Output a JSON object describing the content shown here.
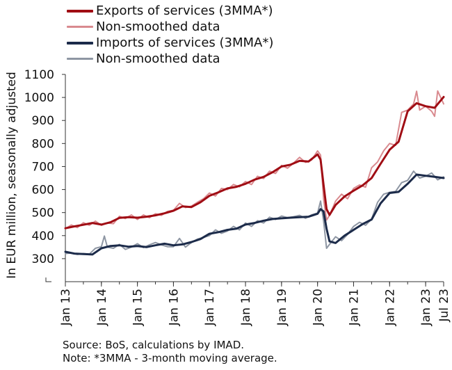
{
  "chart_data": {
    "type": "line",
    "ylabel": "In EUR million, seasonally adjusted",
    "ylim": [
      200,
      1100
    ],
    "yticks": [
      300,
      400,
      500,
      600,
      700,
      800,
      900,
      1000,
      1100
    ],
    "xtick_labels": [
      "Jan 13",
      "Jan 14",
      "Jan 15",
      "Jan 16",
      "Jan 17",
      "Jan 18",
      "Jan 19",
      "Jan 20",
      "Jan 21",
      "Jan 22",
      "Jan 23",
      "Jul 23"
    ],
    "legend": [
      "Exports of services (3MMA*)",
      "Non-smoothed data",
      "Imports of services (3MMA*)",
      "Non-smoothed data"
    ],
    "legend_position": "top-left",
    "grid": false,
    "series": [
      {
        "name": "Exports of services (3MMA*)",
        "color": "#a00d14",
        "style": "thick",
        "points": [
          [
            "Jan 13",
            432
          ],
          [
            "Apr 13",
            440
          ],
          [
            "Jul 13",
            447
          ],
          [
            "Oct 13",
            455
          ],
          [
            "Jan 14",
            448
          ],
          [
            "Apr 14",
            458
          ],
          [
            "Jul 14",
            477
          ],
          [
            "Oct 14",
            480
          ],
          [
            "Jan 15",
            478
          ],
          [
            "Apr 15",
            482
          ],
          [
            "Jul 15",
            488
          ],
          [
            "Oct 15",
            497
          ],
          [
            "Jan 16",
            508
          ],
          [
            "Apr 16",
            527
          ],
          [
            "Jul 16",
            524
          ],
          [
            "Oct 16",
            545
          ],
          [
            "Jan 17",
            573
          ],
          [
            "Apr 17",
            588
          ],
          [
            "Jul 17",
            605
          ],
          [
            "Oct 17",
            612
          ],
          [
            "Jan 18",
            625
          ],
          [
            "Apr 18",
            643
          ],
          [
            "Jul 18",
            655
          ],
          [
            "Oct 18",
            675
          ],
          [
            "Jan 19",
            700
          ],
          [
            "Apr 19",
            708
          ],
          [
            "Jul 19",
            725
          ],
          [
            "Oct 19",
            722
          ],
          [
            "Jan 20",
            753
          ],
          [
            "Feb 20",
            730
          ],
          [
            "Mar 20",
            620
          ],
          [
            "Apr 20",
            515
          ],
          [
            "May 20",
            490
          ],
          [
            "Jul 20",
            533
          ],
          [
            "Oct 20",
            570
          ],
          [
            "Jan 21",
            595
          ],
          [
            "Apr 21",
            618
          ],
          [
            "Jul 21",
            650
          ],
          [
            "Oct 21",
            712
          ],
          [
            "Jan 22",
            773
          ],
          [
            "Apr 22",
            808
          ],
          [
            "Jul 22",
            940
          ],
          [
            "Oct 22",
            975
          ],
          [
            "Jan 23",
            962
          ],
          [
            "Apr 23",
            955
          ],
          [
            "Jul 23",
            1002
          ]
        ]
      },
      {
        "name": "Non-smoothed data",
        "color": "#d98a8f",
        "style": "thin",
        "points": [
          [
            "Jan 13",
            430
          ],
          [
            "Mar 13",
            446
          ],
          [
            "May 13",
            435
          ],
          [
            "Jul 13",
            456
          ],
          [
            "Sep 13",
            445
          ],
          [
            "Nov 13",
            463
          ],
          [
            "Jan 14",
            445
          ],
          [
            "Mar 14",
            455
          ],
          [
            "May 14",
            452
          ],
          [
            "Jul 14",
            484
          ],
          [
            "Sep 14",
            474
          ],
          [
            "Nov 14",
            490
          ],
          [
            "Jan 15",
            470
          ],
          [
            "Mar 15",
            490
          ],
          [
            "May 15",
            478
          ],
          [
            "Jul 15",
            495
          ],
          [
            "Sep 15",
            488
          ],
          [
            "Nov 15",
            505
          ],
          [
            "Jan 16",
            510
          ],
          [
            "Mar 16",
            540
          ],
          [
            "May 16",
            522
          ],
          [
            "Jul 16",
            528
          ],
          [
            "Sep 16",
            545
          ],
          [
            "Nov 16",
            560
          ],
          [
            "Jan 17",
            585
          ],
          [
            "Mar 17",
            572
          ],
          [
            "May 17",
            605
          ],
          [
            "Jul 17",
            600
          ],
          [
            "Sep 17",
            622
          ],
          [
            "Nov 17",
            612
          ],
          [
            "Jan 18",
            635
          ],
          [
            "Mar 18",
            622
          ],
          [
            "May 18",
            658
          ],
          [
            "Jul 18",
            648
          ],
          [
            "Sep 18",
            680
          ],
          [
            "Nov 18",
            670
          ],
          [
            "Jan 19",
            705
          ],
          [
            "Mar 19",
            693
          ],
          [
            "May 19",
            715
          ],
          [
            "Jul 19",
            740
          ],
          [
            "Sep 19",
            718
          ],
          [
            "Nov 19",
            728
          ],
          [
            "Jan 20",
            768
          ],
          [
            "Feb 20",
            750
          ],
          [
            "Mar 20",
            560
          ],
          [
            "Apr 20",
            468
          ],
          [
            "May 20",
            488
          ],
          [
            "Jul 20",
            550
          ],
          [
            "Sep 20",
            580
          ],
          [
            "Nov 20",
            560
          ],
          [
            "Jan 21",
            605
          ],
          [
            "Mar 21",
            620
          ],
          [
            "May 21",
            610
          ],
          [
            "Jul 21",
            695
          ],
          [
            "Sep 21",
            720
          ],
          [
            "Nov 21",
            768
          ],
          [
            "Jan 22",
            800
          ],
          [
            "Mar 22",
            792
          ],
          [
            "May 22",
            935
          ],
          [
            "Jul 22",
            945
          ],
          [
            "Sep 22",
            972
          ],
          [
            "Oct 22",
            1027
          ],
          [
            "Nov 22",
            945
          ],
          [
            "Jan 23",
            962
          ],
          [
            "Mar 23",
            940
          ],
          [
            "Apr 23",
            918
          ],
          [
            "May 23",
            1028
          ],
          [
            "Jul 23",
            972
          ]
        ]
      },
      {
        "name": "Imports of services (3MMA*)",
        "color": "#1c2b4a",
        "style": "thick",
        "points": [
          [
            "Jan 13",
            330
          ],
          [
            "Apr 13",
            322
          ],
          [
            "Jul 13",
            320
          ],
          [
            "Oct 13",
            318
          ],
          [
            "Jan 14",
            345
          ],
          [
            "Apr 14",
            355
          ],
          [
            "Jul 14",
            358
          ],
          [
            "Oct 14",
            352
          ],
          [
            "Jan 15",
            355
          ],
          [
            "Apr 15",
            350
          ],
          [
            "Jul 15",
            358
          ],
          [
            "Oct 15",
            365
          ],
          [
            "Jan 16",
            358
          ],
          [
            "Apr 16",
            362
          ],
          [
            "Jul 16",
            372
          ],
          [
            "Oct 16",
            385
          ],
          [
            "Jan 17",
            408
          ],
          [
            "Apr 17",
            415
          ],
          [
            "Jul 17",
            425
          ],
          [
            "Oct 17",
            430
          ],
          [
            "Jan 18",
            448
          ],
          [
            "Apr 18",
            455
          ],
          [
            "Jul 18",
            465
          ],
          [
            "Oct 18",
            472
          ],
          [
            "Jan 19",
            475
          ],
          [
            "Apr 19",
            478
          ],
          [
            "Jul 19",
            480
          ],
          [
            "Oct 19",
            482
          ],
          [
            "Jan 20",
            495
          ],
          [
            "Feb 20",
            515
          ],
          [
            "Mar 20",
            505
          ],
          [
            "Apr 20",
            430
          ],
          [
            "May 20",
            375
          ],
          [
            "Jul 20",
            368
          ],
          [
            "Oct 20",
            400
          ],
          [
            "Jan 21",
            425
          ],
          [
            "Apr 21",
            450
          ],
          [
            "Jul 21",
            470
          ],
          [
            "Oct 21",
            540
          ],
          [
            "Jan 22",
            585
          ],
          [
            "Apr 22",
            590
          ],
          [
            "Jul 22",
            625
          ],
          [
            "Oct 22",
            665
          ],
          [
            "Jan 23",
            660
          ],
          [
            "Apr 23",
            655
          ],
          [
            "Jul 23",
            650
          ]
        ]
      },
      {
        "name": "Non-smoothed data",
        "color": "#8e96a3",
        "style": "thin",
        "points": [
          [
            "Jan 13",
            322
          ],
          [
            "Mar 13",
            325
          ],
          [
            "May 13",
            318
          ],
          [
            "Jul 13",
            322
          ],
          [
            "Sep 13",
            320
          ],
          [
            "Nov 13",
            345
          ],
          [
            "Jan 14",
            352
          ],
          [
            "Feb 14",
            398
          ],
          [
            "Mar 14",
            350
          ],
          [
            "May 14",
            345
          ],
          [
            "Jul 14",
            362
          ],
          [
            "Sep 14",
            340
          ],
          [
            "Nov 14",
            350
          ],
          [
            "Jan 15",
            365
          ],
          [
            "Mar 15",
            348
          ],
          [
            "May 15",
            360
          ],
          [
            "Jul 15",
            370
          ],
          [
            "Sep 15",
            360
          ],
          [
            "Nov 15",
            352
          ],
          [
            "Jan 16",
            352
          ],
          [
            "Mar 16",
            388
          ],
          [
            "May 16",
            350
          ],
          [
            "Jul 16",
            370
          ],
          [
            "Sep 16",
            385
          ],
          [
            "Nov 16",
            392
          ],
          [
            "Jan 17",
            400
          ],
          [
            "Mar 17",
            425
          ],
          [
            "May 17",
            410
          ],
          [
            "Jul 17",
            420
          ],
          [
            "Sep 17",
            440
          ],
          [
            "Nov 17",
            425
          ],
          [
            "Jan 18",
            455
          ],
          [
            "Mar 18",
            440
          ],
          [
            "May 18",
            465
          ],
          [
            "Jul 18",
            455
          ],
          [
            "Sep 18",
            480
          ],
          [
            "Nov 18",
            470
          ],
          [
            "Jan 19",
            485
          ],
          [
            "Mar 19",
            478
          ],
          [
            "May 19",
            482
          ],
          [
            "Jul 19",
            488
          ],
          [
            "Sep 19",
            475
          ],
          [
            "Nov 19",
            490
          ],
          [
            "Jan 20",
            498
          ],
          [
            "Feb 20",
            550
          ],
          [
            "Mar 20",
            465
          ],
          [
            "Apr 20",
            345
          ],
          [
            "May 20",
            362
          ],
          [
            "Jul 20",
            395
          ],
          [
            "Sep 20",
            378
          ],
          [
            "Nov 20",
            405
          ],
          [
            "Jan 21",
            440
          ],
          [
            "Mar 21",
            458
          ],
          [
            "May 21",
            445
          ],
          [
            "Jul 21",
            472
          ],
          [
            "Sep 21",
            545
          ],
          [
            "Nov 21",
            580
          ],
          [
            "Jan 22",
            588
          ],
          [
            "Mar 22",
            592
          ],
          [
            "May 22",
            630
          ],
          [
            "Jul 22",
            640
          ],
          [
            "Sep 22",
            680
          ],
          [
            "Nov 22",
            650
          ],
          [
            "Jan 23",
            658
          ],
          [
            "Mar 23",
            672
          ],
          [
            "May 23",
            642
          ],
          [
            "Jul 23",
            655
          ]
        ]
      }
    ]
  },
  "notes": {
    "source": "Source: BoS, calculations by IMAD.",
    "note": "Note: *3MMA - 3-month moving average."
  }
}
